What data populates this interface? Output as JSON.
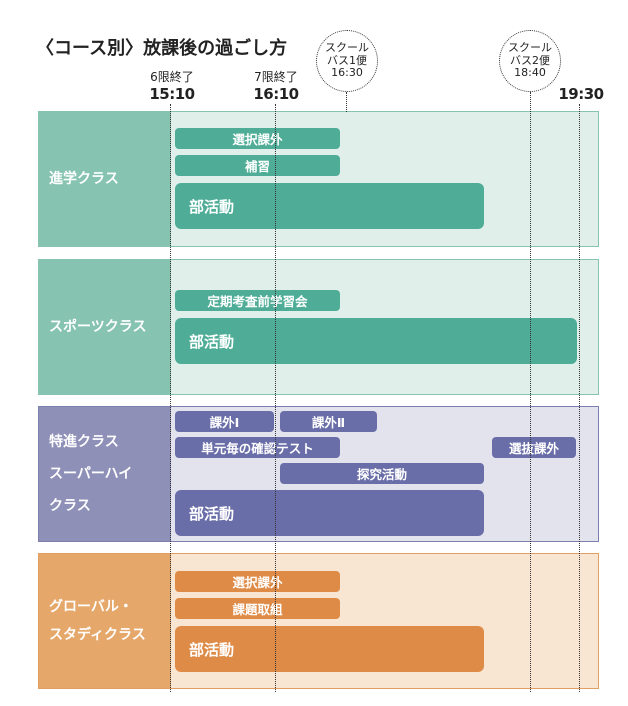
{
  "title": "〈コース別〉放課後の過ごし方",
  "timeline": {
    "markers": [
      {
        "label": "6限終了",
        "time": "15:10"
      },
      {
        "label": "7限終了",
        "time": "16:10"
      },
      {
        "label": "",
        "time": "19:30"
      }
    ],
    "buses": [
      {
        "line1": "スクール",
        "line2": "バス1便",
        "line3": "16:30"
      },
      {
        "line1": "スクール",
        "line2": "バス2便",
        "line3": "18:40"
      }
    ]
  },
  "courses": [
    {
      "name": [
        "進学クラス"
      ],
      "color": "#4fad97",
      "activities": [
        "選択課外",
        "補習",
        "部活動"
      ]
    },
    {
      "name": [
        "スポーツクラス"
      ],
      "color": "#4fad97",
      "activities": [
        "定期考査前学習会",
        "部活動"
      ]
    },
    {
      "name": [
        "特進クラス",
        "スーパーハイ",
        "クラス"
      ],
      "color": "#6a6ea8",
      "activities": [
        "課外Ⅰ",
        "課外Ⅱ",
        "単元毎の確認テスト",
        "選抜課外",
        "探究活動",
        "部活動"
      ]
    },
    {
      "name": [
        "グローバル・",
        "スタディクラス"
      ],
      "color": "#df8b48",
      "activities": [
        "選択課外",
        "課題取組",
        "部活動"
      ]
    }
  ]
}
